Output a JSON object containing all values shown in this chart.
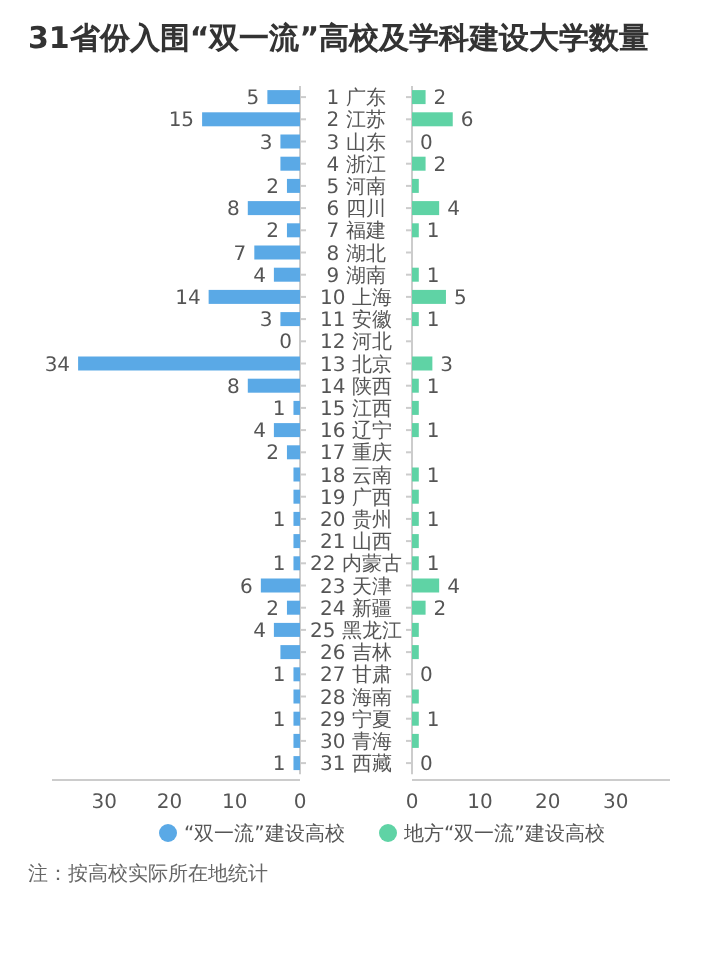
{
  "chart_data": [
    {
      "type": "bar",
      "orientation": "horizontal",
      "title": "31省份入围“双一流”高校及学科建设大学数量",
      "categories": [
        "1 广东",
        "2 江苏",
        "3 山东",
        "4 浙江",
        "5 河南",
        "6 四川",
        "7 福建",
        "8 湖北",
        "9 湖南",
        "10 上海",
        "11 安徽",
        "12 河北",
        "13 北京",
        "14 陕西",
        "15 江西",
        "16 辽宁",
        "17 重庆",
        "18 云南",
        "19 广西",
        "20 贵州",
        "21 山西",
        "22 内蒙古",
        "23 天津",
        "24 新疆",
        "25 黑龙江",
        "26 吉林",
        "27 甘肃",
        "28 海南",
        "29 宁夏",
        "30 青海",
        "31 西藏"
      ],
      "series": [
        {
          "name": "“双一流”建设高校",
          "color": "#5aa9e6",
          "values": [
            5,
            15,
            3,
            3,
            2,
            8,
            2,
            7,
            4,
            14,
            3,
            0,
            34,
            8,
            1,
            4,
            2,
            1,
            1,
            1,
            1,
            1,
            6,
            2,
            4,
            3,
            1,
            1,
            1,
            1,
            1
          ],
          "value_labels": [
            "5",
            "15",
            "3",
            null,
            "2",
            "8",
            "2",
            "7",
            "4",
            "14",
            "3",
            "0",
            "34",
            "8",
            "1",
            "4",
            "2",
            null,
            null,
            "1",
            null,
            "1",
            "6",
            "2",
            "4",
            null,
            "1",
            null,
            "1",
            null,
            "1"
          ]
        }
      ],
      "xlim": [
        38,
        0
      ],
      "xticks": [
        30,
        20,
        10,
        0
      ],
      "legend": "bottom",
      "annotations": [
        "注：按高校实际所在地统计"
      ]
    },
    {
      "type": "bar",
      "orientation": "horizontal",
      "categories": [
        null,
        null,
        null,
        null,
        null,
        null,
        null,
        null,
        null,
        null,
        null,
        null,
        null,
        null,
        null,
        null,
        null,
        null,
        null,
        null,
        null,
        null,
        null,
        null,
        null,
        null,
        null,
        null,
        null,
        null,
        null
      ],
      "series": [
        {
          "name": "地方“双一流”建设高校",
          "color": "#5fd3a5",
          "values": [
            2,
            6,
            0,
            2,
            1,
            4,
            1,
            0,
            1,
            5,
            1,
            0,
            3,
            1,
            1,
            1,
            0,
            1,
            1,
            1,
            1,
            1,
            4,
            2,
            1,
            1,
            0,
            1,
            1,
            1,
            0
          ],
          "value_labels": [
            "2",
            "6",
            "0",
            "2",
            null,
            "4",
            "1",
            null,
            "1",
            "5",
            "1",
            null,
            "3",
            "1",
            null,
            "1",
            null,
            "1",
            null,
            "1",
            null,
            "1",
            "4",
            "2",
            null,
            null,
            "0",
            null,
            "1",
            null,
            "0"
          ]
        }
      ],
      "xlim": [
        0,
        38
      ],
      "xticks": [
        0,
        10,
        20,
        30
      ],
      "legend": "bottom"
    }
  ]
}
